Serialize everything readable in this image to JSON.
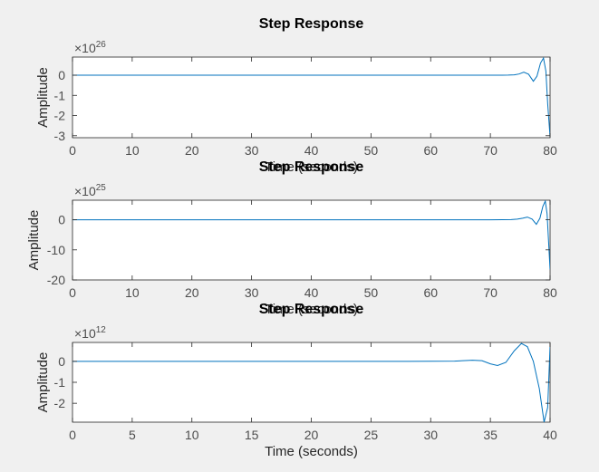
{
  "chart_data": [
    {
      "type": "line",
      "title": "Step Response",
      "xlabel": "Time (seconds)",
      "ylabel": "Amplitude",
      "exponent": "26",
      "xlim": [
        0,
        80
      ],
      "ylim": [
        -3.1,
        0.9
      ],
      "xticks": [
        0,
        10,
        20,
        30,
        40,
        50,
        60,
        70,
        80
      ],
      "yticks": [
        0,
        -1,
        -2,
        -3
      ],
      "grid": false,
      "x": [
        0,
        70,
        72,
        73,
        74,
        74.8,
        75.6,
        76.4,
        77.2,
        77.8,
        78.4,
        78.9,
        79.3,
        79.6,
        80
      ],
      "y": [
        0,
        0,
        0,
        0.005,
        0.02,
        0.06,
        0.15,
        0.05,
        -0.3,
        -0.05,
        0.6,
        0.85,
        0.2,
        -1.4,
        -3.05
      ]
    },
    {
      "type": "line",
      "title": "Step Response",
      "xlabel": "Time (seconds)",
      "ylabel": "Amplitude",
      "exponent": "25",
      "xlim": [
        0,
        80
      ],
      "ylim": [
        -20,
        6.5
      ],
      "xticks": [
        0,
        10,
        20,
        30,
        40,
        50,
        60,
        70,
        80
      ],
      "yticks": [
        0,
        -10,
        -20
      ],
      "grid": false,
      "x": [
        0,
        70,
        72,
        73.5,
        74.5,
        75.4,
        76.2,
        77,
        77.7,
        78.3,
        78.8,
        79.2,
        79.5,
        80
      ],
      "y": [
        0,
        0,
        0.02,
        0.08,
        0.2,
        0.5,
        0.9,
        0.2,
        -1.5,
        0.5,
        4.5,
        6.2,
        2,
        -16.5
      ]
    },
    {
      "type": "line",
      "title": "Step Response",
      "xlabel": "Time (seconds)",
      "ylabel": "Amplitude",
      "exponent": "12",
      "xlim": [
        0,
        40
      ],
      "ylim": [
        -2.9,
        0.9
      ],
      "xticks": [
        0,
        5,
        10,
        15,
        20,
        25,
        30,
        35,
        40
      ],
      "yticks": [
        0,
        -1,
        -2
      ],
      "grid": false,
      "x": [
        0,
        28,
        30,
        32,
        33.5,
        34.3,
        35,
        35.6,
        36.3,
        37,
        37.6,
        38.1,
        38.6,
        39.1,
        39.5,
        39.8,
        40
      ],
      "y": [
        0,
        0,
        0.005,
        0.01,
        0.05,
        0.03,
        -0.12,
        -0.2,
        -0.05,
        0.5,
        0.85,
        0.7,
        0,
        -1.3,
        -2.9,
        -2.2,
        0.7
      ]
    }
  ]
}
